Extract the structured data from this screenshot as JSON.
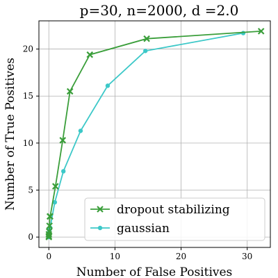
{
  "chart_data": {
    "type": "line",
    "title": "p=30, n=2000, d =2.0",
    "xlabel": "Number of False Positives",
    "ylabel": "Number of True Positives",
    "xlim": [
      -1.5,
      33.5
    ],
    "ylim": [
      -1.1,
      23.0
    ],
    "xticks": [
      0,
      10,
      20,
      30
    ],
    "yticks": [
      0,
      5,
      10,
      15,
      20
    ],
    "grid": true,
    "legend_position": "lower-right",
    "series": [
      {
        "name": "dropout stabilizing",
        "color": "#3a9e3a",
        "marker": "x",
        "x": [
          0,
          0,
          0,
          0.05,
          0.1,
          0.15,
          0.2,
          1.0,
          2.1,
          3.2,
          6.2,
          14.8,
          32.1
        ],
        "y": [
          0,
          0.1,
          0.3,
          0.6,
          1.2,
          2.2,
          2.2,
          5.4,
          10.3,
          15.5,
          19.4,
          21.1,
          21.9
        ]
      },
      {
        "name": "gaussian",
        "color": "#3cc8c8",
        "marker": "circle",
        "x": [
          0,
          0,
          0,
          0,
          0.05,
          0.1,
          0.2,
          0.9,
          2.2,
          4.8,
          8.9,
          14.6,
          29.4
        ],
        "y": [
          0,
          0.1,
          0.2,
          0.3,
          0.5,
          0.8,
          1.0,
          3.7,
          7.0,
          11.3,
          16.1,
          19.8,
          21.7
        ]
      }
    ]
  }
}
